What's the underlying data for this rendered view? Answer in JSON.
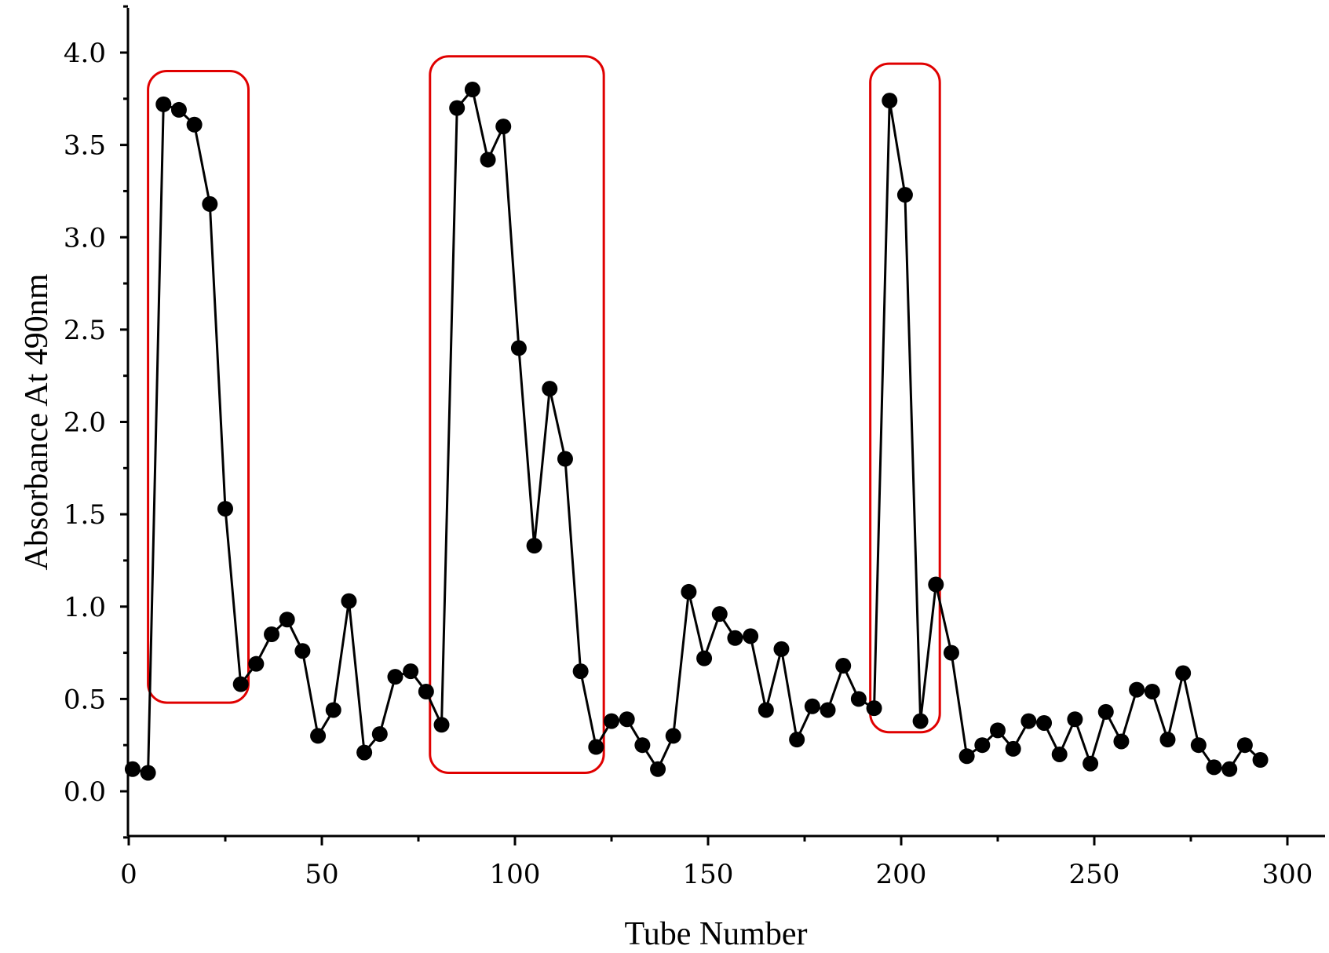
{
  "chart_data": {
    "type": "line",
    "title": "",
    "xlabel": "Tube Number",
    "ylabel": "Absorbance At 490nm",
    "xlim": [
      0,
      310
    ],
    "ylim": [
      -0.25,
      4.25
    ],
    "x_ticks": [
      0,
      50,
      100,
      150,
      200,
      250,
      300
    ],
    "x_tick_labels": [
      "0",
      "50",
      "100",
      "150",
      "200",
      "250",
      "300"
    ],
    "y_ticks": [
      0.0,
      0.5,
      1.0,
      1.5,
      2.0,
      2.5,
      3.0,
      3.5,
      4.0
    ],
    "y_tick_labels": [
      "0.0",
      "0.5",
      "1.0",
      "1.5",
      "2.0",
      "2.5",
      "3.0",
      "3.5",
      "4.0"
    ],
    "grid": false,
    "marker": "filled-circle",
    "line_color": "#000000",
    "highlight_color": "#e00000",
    "series": [
      {
        "x": [
          1,
          5,
          9,
          13,
          17,
          21,
          25,
          29,
          33,
          37,
          41,
          45,
          49,
          53,
          57,
          61,
          65,
          69,
          73,
          77,
          81,
          85,
          89,
          93,
          97,
          101,
          105,
          109,
          113,
          117,
          121,
          125,
          129,
          133,
          137,
          141,
          145,
          149,
          153,
          157,
          161,
          165,
          169,
          173,
          177,
          181,
          185,
          189,
          193,
          197,
          201,
          205,
          209,
          213,
          217,
          221,
          225,
          229,
          233,
          237,
          241,
          245,
          249,
          253,
          257,
          261,
          265,
          269,
          273,
          277,
          281,
          285,
          289,
          293
        ],
        "y": [
          0.12,
          0.1,
          3.72,
          3.69,
          3.61,
          3.18,
          1.53,
          0.58,
          0.69,
          0.85,
          0.93,
          0.76,
          0.3,
          0.44,
          1.03,
          0.21,
          0.31,
          0.62,
          0.65,
          0.54,
          0.36,
          3.7,
          3.8,
          3.42,
          3.6,
          2.4,
          1.33,
          2.18,
          1.8,
          0.65,
          0.24,
          0.38,
          0.39,
          0.25,
          0.12,
          0.3,
          1.08,
          0.72,
          0.96,
          0.83,
          0.84,
          0.44,
          0.77,
          0.28,
          0.46,
          0.44,
          0.68,
          0.5,
          0.45,
          3.74,
          3.23,
          0.38,
          1.12,
          0.75,
          0.19,
          0.25,
          0.33,
          0.23,
          0.38,
          0.37,
          0.2,
          0.39,
          0.15,
          0.43,
          0.27,
          0.55,
          0.54,
          0.28,
          0.64,
          0.25,
          0.13,
          0.12,
          0.25,
          0.17
        ]
      }
    ],
    "highlights": [
      {
        "x_range": [
          5,
          31
        ],
        "y_range": [
          0.48,
          3.9
        ]
      },
      {
        "x_range": [
          78,
          123
        ],
        "y_range": [
          0.1,
          3.98
        ]
      },
      {
        "x_range": [
          192,
          210
        ],
        "y_range": [
          0.32,
          3.94
        ]
      }
    ]
  }
}
